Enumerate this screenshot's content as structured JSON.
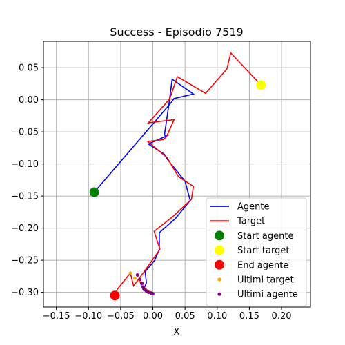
{
  "chart_data": {
    "type": "line",
    "title": "Success - Episodio 7519",
    "xlabel": "X",
    "ylabel": "Y",
    "xlim": [
      -0.17,
      0.245
    ],
    "ylim": [
      -0.323,
      0.091
    ],
    "xticks": [
      -0.15,
      -0.1,
      -0.05,
      0.0,
      0.05,
      0.1,
      0.15,
      0.2
    ],
    "xtick_labels": [
      "−0.15",
      "−0.10",
      "−0.05",
      "0.00",
      "0.05",
      "0.10",
      "0.15",
      "0.20"
    ],
    "yticks": [
      0.05,
      0.0,
      -0.05,
      -0.1,
      -0.15,
      -0.2,
      -0.25,
      -0.3
    ],
    "ytick_labels": [
      "0.05",
      "0.00",
      "−0.05",
      "−0.10",
      "−0.15",
      "−0.20",
      "−0.25",
      "−0.30"
    ],
    "grid": true,
    "legend_position": "lower-right",
    "colors": {
      "agente": "#0000ff",
      "target": "#ff0000",
      "start_agente": "#008000",
      "start_target": "#ffff00",
      "end_agente": "#ff0000",
      "ultimi_target": "#ffa500",
      "ultimi_agente": "#800080"
    },
    "series": [
      {
        "name": "Agente",
        "type": "line",
        "x": [
          -0.091,
          0.028,
          0.033,
          0.063,
          0.03,
          0.025,
          0.018,
          0.022,
          -0.007,
          0.018,
          0.022,
          0.05,
          0.058,
          0.035,
          0.01,
          0.01,
          0.003,
          -0.012,
          -0.01,
          -0.012,
          -0.015,
          -0.022,
          -0.012,
          -0.01,
          -0.005,
          0.0
        ],
        "y": [
          -0.144,
          -0.005,
          0.002,
          0.009,
          0.032,
          -0.007,
          -0.055,
          -0.056,
          -0.069,
          -0.085,
          -0.092,
          -0.127,
          -0.157,
          -0.185,
          -0.207,
          -0.233,
          -0.25,
          -0.268,
          -0.285,
          -0.29,
          -0.296,
          -0.278,
          -0.295,
          -0.299,
          -0.301,
          -0.302
        ]
      },
      {
        "name": "Target",
        "type": "line",
        "x": [
          0.168,
          0.121,
          0.115,
          0.082,
          0.038,
          0.026,
          -0.007,
          0.033,
          0.021,
          0.016,
          -0.008,
          0.022,
          0.04,
          0.063,
          0.06,
          0.03,
          0.002,
          0.011,
          -0.015,
          -0.03,
          -0.035,
          -0.055,
          -0.059
        ],
        "y": [
          0.023,
          0.073,
          0.048,
          0.01,
          0.036,
          0.001,
          -0.036,
          -0.031,
          -0.058,
          -0.062,
          -0.065,
          -0.09,
          -0.12,
          -0.135,
          -0.155,
          -0.183,
          -0.205,
          -0.233,
          -0.27,
          -0.29,
          -0.27,
          -0.295,
          -0.305
        ]
      }
    ],
    "markers": {
      "start_agente": {
        "x": -0.091,
        "y": -0.144
      },
      "start_target": {
        "x": 0.168,
        "y": 0.023
      },
      "end_agente": {
        "x": -0.059,
        "y": -0.305
      }
    },
    "ultimi_target": {
      "x": [
        -0.035,
        -0.028,
        -0.02,
        -0.015,
        -0.012,
        -0.008,
        -0.005,
        -0.003
      ],
      "y": [
        -0.27,
        -0.278,
        -0.282,
        -0.29,
        -0.295,
        -0.298,
        -0.3,
        -0.301
      ]
    },
    "ultimi_agente": {
      "x": [
        -0.024,
        -0.02,
        -0.017,
        -0.015,
        -0.012,
        -0.01,
        -0.007,
        -0.003,
        0.0
      ],
      "y": [
        -0.273,
        -0.28,
        -0.286,
        -0.292,
        -0.296,
        -0.298,
        -0.3,
        -0.301,
        -0.302
      ]
    },
    "legend": [
      {
        "label": "Agente",
        "kind": "line",
        "color_key": "agente"
      },
      {
        "label": "Target",
        "kind": "line",
        "color_key": "target"
      },
      {
        "label": "Start agente",
        "kind": "bigdot",
        "color_key": "start_agente"
      },
      {
        "label": "Start target",
        "kind": "bigdot",
        "color_key": "start_target"
      },
      {
        "label": "End agente",
        "kind": "bigdot",
        "color_key": "end_agente"
      },
      {
        "label": "Ultimi target",
        "kind": "smalldot",
        "color_key": "ultimi_target"
      },
      {
        "label": "Ultimi agente",
        "kind": "smalldot",
        "color_key": "ultimi_agente"
      }
    ]
  }
}
